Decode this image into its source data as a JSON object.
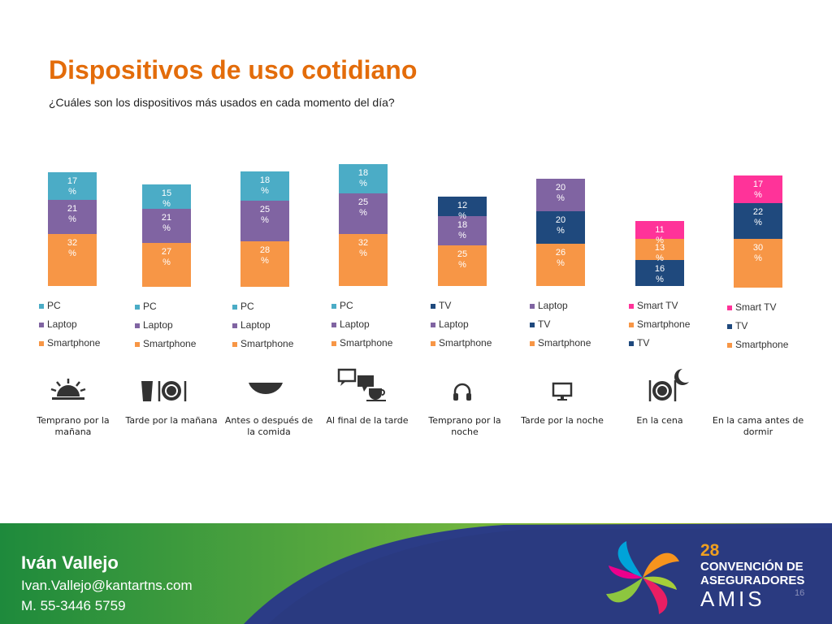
{
  "title": "Dispositivos de uso cotidiano",
  "subtitle": "¿Cuáles son los dispositivos más usados en cada momento del día?",
  "colors": {
    "PC": "#4BACC6",
    "Laptop": "#8064A2",
    "Smartphone": "#F79646",
    "TV": "#1F497D",
    "Smart TV": "#FF3399",
    "title": "#E36C0A"
  },
  "chart_data": [
    {
      "type": "bar",
      "stacked": true,
      "category": "Temprano por la mañana",
      "icon": "sunrise-icon",
      "series": [
        {
          "name": "Smartphone",
          "value": 32,
          "label": "32 %"
        },
        {
          "name": "Laptop",
          "value": 21,
          "label": "21 %"
        },
        {
          "name": "PC",
          "value": 17,
          "label": "17 %"
        }
      ],
      "legend": [
        "PC",
        "Laptop",
        "Smartphone"
      ]
    },
    {
      "type": "bar",
      "stacked": true,
      "category": "Tarde por la mañana",
      "icon": "cup-plate-cutlery-icon",
      "series": [
        {
          "name": "Smartphone",
          "value": 27,
          "label": "27 %"
        },
        {
          "name": "Laptop",
          "value": 21,
          "label": "21 %"
        },
        {
          "name": "PC",
          "value": 15,
          "label": "15 %"
        }
      ],
      "legend": [
        "PC",
        "Laptop",
        "Smartphone"
      ]
    },
    {
      "type": "bar",
      "stacked": true,
      "category": "Antes o después de la comida",
      "icon": "bowl-icon",
      "series": [
        {
          "name": "Smartphone",
          "value": 28,
          "label": "28 %"
        },
        {
          "name": "Laptop",
          "value": 25,
          "label": "25 %"
        },
        {
          "name": "PC",
          "value": 18,
          "label": "18 %"
        }
      ],
      "legend": [
        "PC",
        "Laptop",
        "Smartphone"
      ]
    },
    {
      "type": "bar",
      "stacked": true,
      "category": "Al final de la tarde",
      "icon": "chat-coffee-icon",
      "series": [
        {
          "name": "Smartphone",
          "value": 32,
          "label": "32 %"
        },
        {
          "name": "Laptop",
          "value": 25,
          "label": "25 %"
        },
        {
          "name": "PC",
          "value": 18,
          "label": "18 %"
        }
      ],
      "legend": [
        "PC",
        "Laptop",
        "Smartphone"
      ]
    },
    {
      "type": "bar",
      "stacked": true,
      "category": "Temprano por la noche",
      "icon": "headphones-icon",
      "series": [
        {
          "name": "Smartphone",
          "value": 25,
          "label": "25 %"
        },
        {
          "name": "Laptop",
          "value": 18,
          "label": "18 %"
        },
        {
          "name": "TV",
          "value": 12,
          "label": "12 %"
        }
      ],
      "legend": [
        "TV",
        "Laptop",
        "Smartphone"
      ]
    },
    {
      "type": "bar",
      "stacked": true,
      "category": "Tarde por la noche",
      "icon": "monitor-icon",
      "series": [
        {
          "name": "Smartphone",
          "value": 26,
          "label": "26 %"
        },
        {
          "name": "TV",
          "value": 20,
          "label": "20 %"
        },
        {
          "name": "Laptop",
          "value": 20,
          "label": "20 %"
        }
      ],
      "legend": [
        "Laptop",
        "TV",
        "Smartphone"
      ]
    },
    {
      "type": "bar",
      "stacked": true,
      "category": "En la cena",
      "icon": "dinner-moon-icon",
      "series": [
        {
          "name": "TV",
          "value": 16,
          "label": "16 %"
        },
        {
          "name": "Smartphone",
          "value": 13,
          "label": "13 %"
        },
        {
          "name": "Smart TV",
          "value": 11,
          "label": "11 %"
        }
      ],
      "legend": [
        "Smart TV",
        "Smartphone",
        "TV"
      ]
    },
    {
      "type": "bar",
      "stacked": true,
      "category": "En la cama antes de dormir",
      "icon": "moon-icon",
      "series": [
        {
          "name": "Smartphone",
          "value": 30,
          "label": "30 %"
        },
        {
          "name": "TV",
          "value": 22,
          "label": "22 %"
        },
        {
          "name": "Smart TV",
          "value": 17,
          "label": "17 %"
        }
      ],
      "legend": [
        "Smart TV",
        "TV",
        "Smartphone"
      ]
    }
  ],
  "footer": {
    "presenter": "Iván Vallejo",
    "email": "Ivan.Vallejo@kantartns.com",
    "phone": "M. 55-3446 5759",
    "slide_number": "16",
    "convention_number": "28",
    "convention_line1": "CONVENCIÓN DE",
    "convention_line2": "ASEGURADORES",
    "convention_brand": "AMIS"
  }
}
